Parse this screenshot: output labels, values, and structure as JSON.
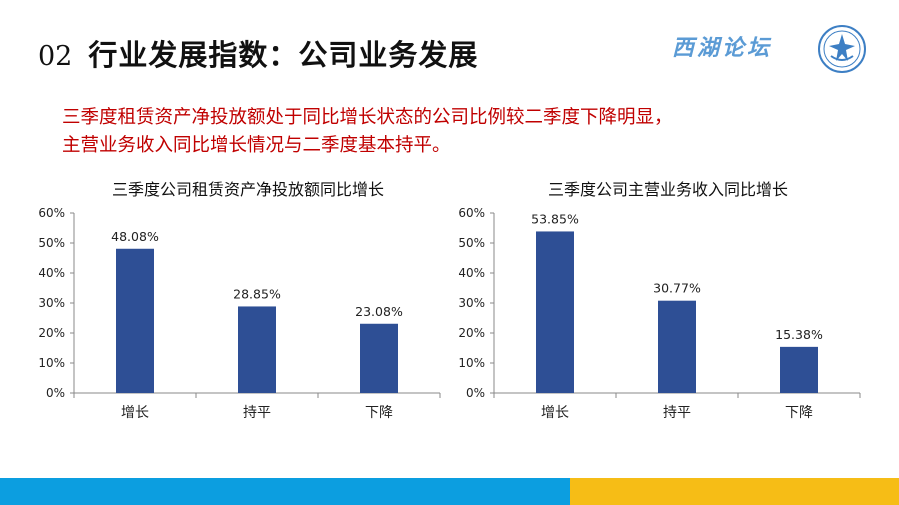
{
  "header": {
    "section_number": "02",
    "title": "行业发展指数：公司业务发展",
    "brand": "西湖论坛"
  },
  "summary": {
    "line1": "三季度租赁资产净投放额处于同比增长状态的公司比例较二季度下降明显，",
    "line2": "主营业务收入同比增长情况与二季度基本持平。"
  },
  "colors": {
    "bar": "#2e4f95",
    "footer_left": "#0c9ee0",
    "footer_right": "#f6bd16",
    "summary_text": "#c00000"
  },
  "chart_data": [
    {
      "type": "bar",
      "title": "三季度公司租赁资产净投放额同比增长",
      "categories": [
        "增长",
        "持平",
        "下降"
      ],
      "values": [
        48.08,
        28.85,
        23.08
      ],
      "labels": [
        "48.08%",
        "28.85%",
        "23.08%"
      ],
      "yticks": [
        "0%",
        "10%",
        "20%",
        "30%",
        "40%",
        "50%",
        "60%"
      ],
      "ylim": [
        0,
        60
      ],
      "grid": false,
      "legend": "none"
    },
    {
      "type": "bar",
      "title": "三季度公司主营业务收入同比增长",
      "categories": [
        "增长",
        "持平",
        "下降"
      ],
      "values": [
        53.85,
        30.77,
        15.38
      ],
      "labels": [
        "53.85%",
        "30.77%",
        "15.38%"
      ],
      "yticks": [
        "0%",
        "10%",
        "20%",
        "30%",
        "40%",
        "50%",
        "60%"
      ],
      "ylim": [
        0,
        60
      ],
      "grid": false,
      "legend": "none"
    }
  ]
}
